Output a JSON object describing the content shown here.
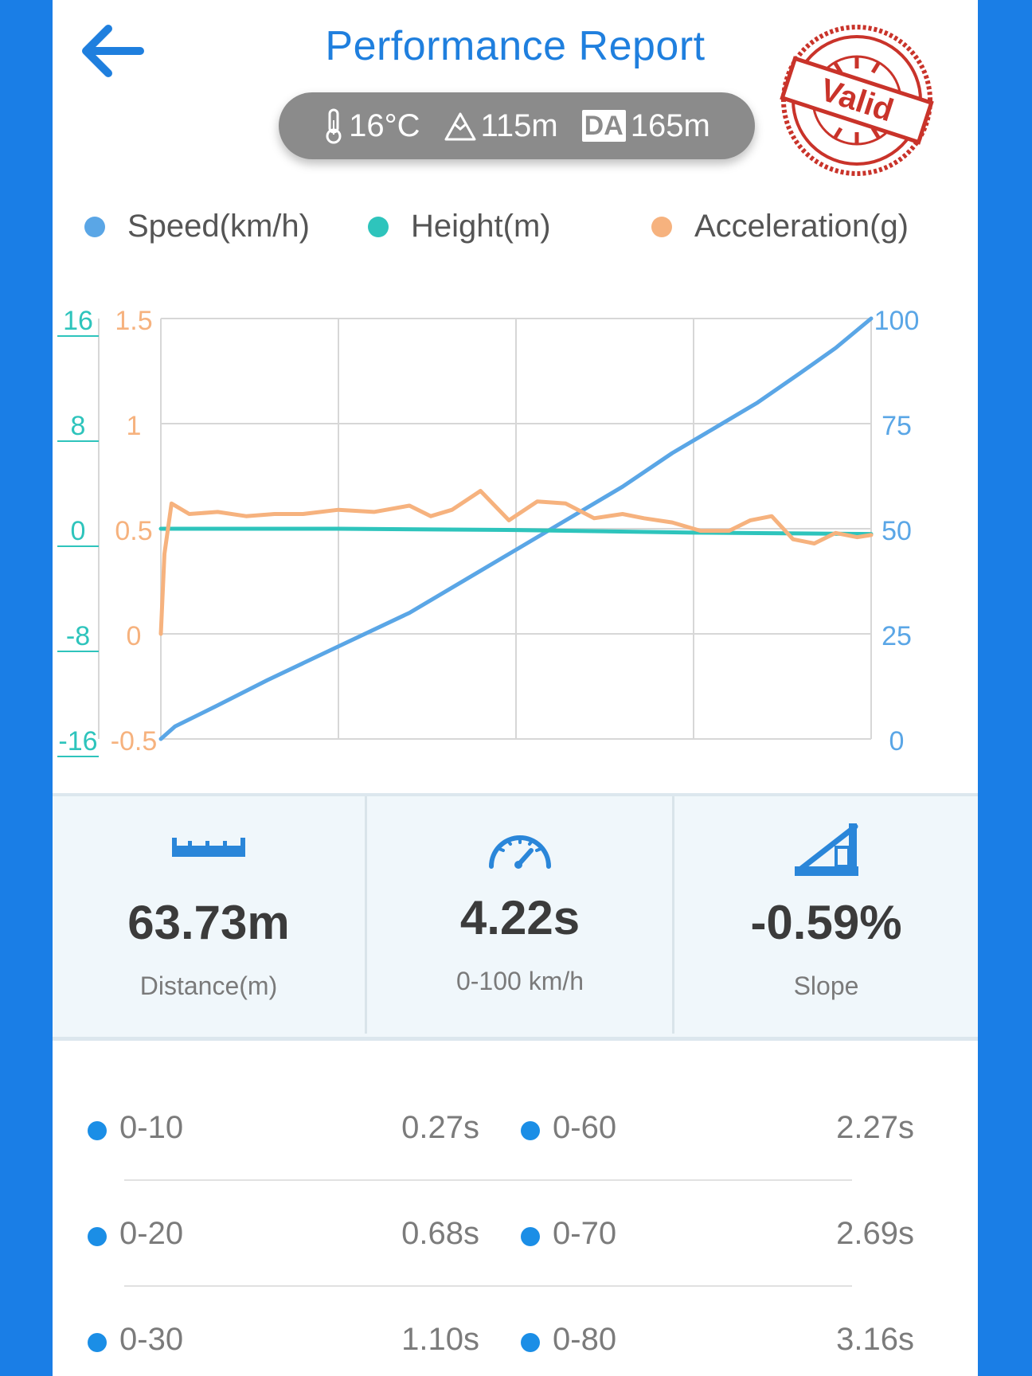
{
  "header": {
    "title": "Performance Report",
    "conditions": {
      "temperature": "16°C",
      "altitude": "115m",
      "da_label": "DA",
      "density_altitude": "165m"
    },
    "stamp_text": "Valid"
  },
  "legend": [
    {
      "label": "Speed(km/h)",
      "color": "#5aa6e6"
    },
    {
      "label": "Height(m)",
      "color": "#2ec4bc"
    },
    {
      "label": "Acceleration(g)",
      "color": "#f6b27e"
    }
  ],
  "chart_data": {
    "type": "line",
    "axes": {
      "height_ticks": [
        "16",
        "8",
        "0",
        "-8",
        "-16"
      ],
      "acceleration_ticks": [
        "1.5",
        "1",
        "0.5",
        "0",
        "-0.5"
      ],
      "speed_ticks": [
        "100",
        "75",
        "50",
        "25",
        "0"
      ],
      "height_range": [
        -16,
        16
      ],
      "acceleration_range": [
        -0.5,
        1.5
      ],
      "speed_range": [
        0,
        100
      ]
    },
    "grid": true,
    "series": [
      {
        "name": "Speed(km/h)",
        "color": "#5aa6e6",
        "axis": "speed",
        "x": [
          0,
          0.02,
          0.08,
          0.15,
          0.25,
          0.35,
          0.45,
          0.55,
          0.65,
          0.72,
          0.78,
          0.84,
          0.9,
          0.95,
          1.0
        ],
        "y": [
          0,
          3,
          8,
          14,
          22,
          30,
          40,
          50,
          60,
          68,
          74,
          80,
          87,
          93,
          100
        ]
      },
      {
        "name": "Height(m)",
        "color": "#2ec4bc",
        "axis": "height",
        "x": [
          0,
          0.25,
          0.5,
          0.75,
          1.0
        ],
        "y": [
          0,
          0,
          -0.1,
          -0.3,
          -0.4
        ]
      },
      {
        "name": "Acceleration(g)",
        "color": "#f6b27e",
        "axis": "acceleration",
        "x": [
          0,
          0.005,
          0.015,
          0.04,
          0.08,
          0.12,
          0.16,
          0.2,
          0.25,
          0.3,
          0.35,
          0.38,
          0.41,
          0.45,
          0.49,
          0.53,
          0.57,
          0.61,
          0.65,
          0.68,
          0.72,
          0.76,
          0.8,
          0.83,
          0.86,
          0.89,
          0.92,
          0.95,
          0.98,
          1.0
        ],
        "y": [
          0,
          0.38,
          0.62,
          0.57,
          0.58,
          0.56,
          0.57,
          0.57,
          0.59,
          0.58,
          0.61,
          0.56,
          0.59,
          0.68,
          0.54,
          0.63,
          0.62,
          0.55,
          0.57,
          0.55,
          0.53,
          0.49,
          0.49,
          0.54,
          0.56,
          0.45,
          0.43,
          0.48,
          0.46,
          0.47
        ]
      }
    ]
  },
  "stats": [
    {
      "icon": "ruler-icon",
      "value": "63.73m",
      "label": "Distance(m)"
    },
    {
      "icon": "speedometer-icon",
      "value": "4.22s",
      "label": "0-100 km/h"
    },
    {
      "icon": "slope-icon",
      "value": "-0.59%",
      "label": "Slope"
    }
  ],
  "splits": {
    "left": [
      {
        "label": "0-10",
        "value": "0.27s"
      },
      {
        "label": "0-20",
        "value": "0.68s"
      },
      {
        "label": "0-30",
        "value": "1.10s"
      }
    ],
    "right": [
      {
        "label": "0-60",
        "value": "2.27s"
      },
      {
        "label": "0-70",
        "value": "2.69s"
      },
      {
        "label": "0-80",
        "value": "3.16s"
      }
    ]
  }
}
